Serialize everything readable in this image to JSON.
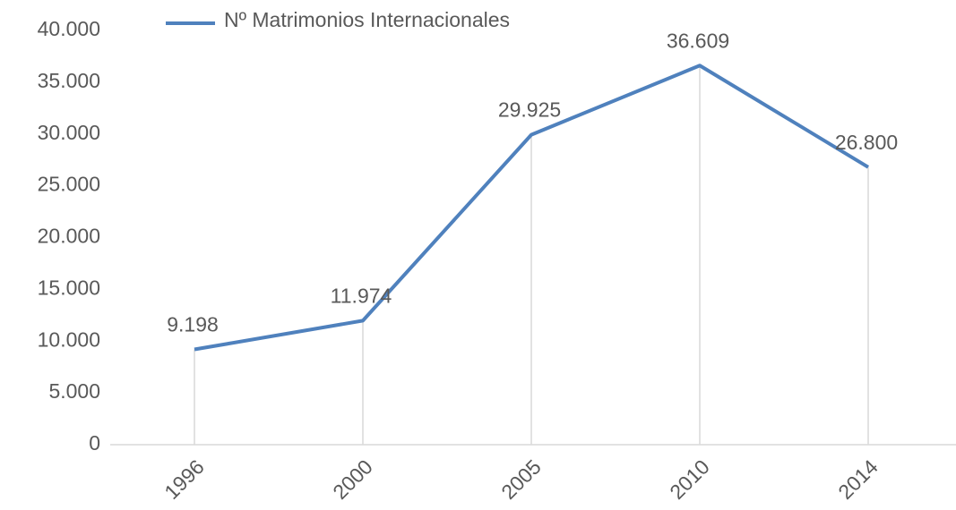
{
  "chart_data": {
    "type": "line",
    "categories": [
      "1996",
      "2000",
      "2005",
      "2010",
      "2014"
    ],
    "series": [
      {
        "name": "Nº Matrimonios Internacionales",
        "color": "#4f81bd",
        "values": [
          9198,
          11974,
          29925,
          36609,
          26800
        ],
        "value_labels": [
          "9.198",
          "11.974",
          "29.925",
          "36.609",
          "26.800"
        ]
      }
    ],
    "ylim": [
      0,
      40000
    ],
    "yticks": [
      {
        "value": 0,
        "label": "0"
      },
      {
        "value": 5000,
        "label": "5.000"
      },
      {
        "value": 10000,
        "label": "10.000"
      },
      {
        "value": 15000,
        "label": "15.000"
      },
      {
        "value": 20000,
        "label": "20.000"
      },
      {
        "value": 25000,
        "label": "25.000"
      },
      {
        "value": 30000,
        "label": "30.000"
      },
      {
        "value": 35000,
        "label": "35.000"
      },
      {
        "value": 40000,
        "label": "40.000"
      }
    ],
    "legend": "top",
    "drop_lines": true
  }
}
